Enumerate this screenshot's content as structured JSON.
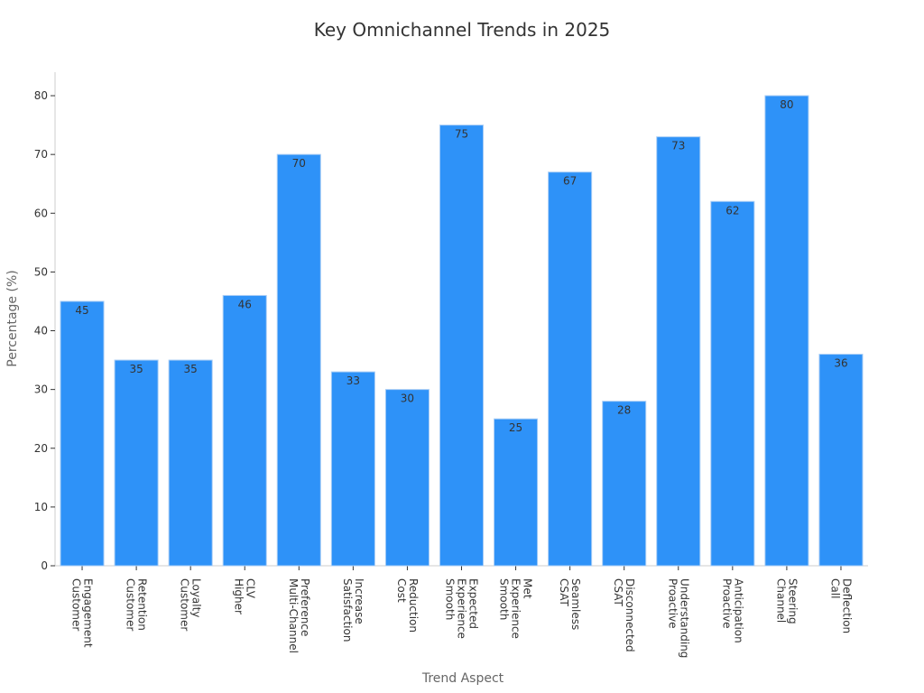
{
  "chart_data": {
    "type": "bar",
    "title": "Key Omnichannel Trends in 2025",
    "xlabel": "Trend Aspect",
    "ylabel": "Percentage (%)",
    "ylim": [
      0,
      84
    ],
    "yticks": [
      0,
      10,
      20,
      30,
      40,
      50,
      60,
      70,
      80
    ],
    "categories": [
      "Customer Engagement",
      "Customer Retention",
      "Customer Loyalty",
      "Higher CLV",
      "Multi-Channel Preference",
      "Satisfaction Increase",
      "Cost Reduction",
      "Smooth Experience Expected",
      "Smooth Experience Met",
      "CSAT Seamless",
      "CSAT Disconnected",
      "Proactive Understanding",
      "Proactive Anticipation",
      "Channel Steering",
      "Call Deflection"
    ],
    "category_lines": [
      [
        "Customer",
        "Engagement"
      ],
      [
        "Customer",
        "Retention"
      ],
      [
        "Customer",
        "Loyalty"
      ],
      [
        "Higher",
        "CLV"
      ],
      [
        "Multi-Channel",
        "Preference"
      ],
      [
        "Satisfaction",
        "Increase"
      ],
      [
        "Cost",
        "Reduction"
      ],
      [
        "Smooth",
        "Experience",
        "Expected"
      ],
      [
        "Smooth",
        "Experience",
        "Met"
      ],
      [
        "CSAT",
        "Seamless"
      ],
      [
        "CSAT",
        "Disconnected"
      ],
      [
        "Proactive",
        "Understanding"
      ],
      [
        "Proactive",
        "Anticipation"
      ],
      [
        "Channel",
        "Steering"
      ],
      [
        "Call",
        "Deflection"
      ]
    ],
    "values": [
      45,
      35,
      35,
      46,
      70,
      33,
      30,
      75,
      25,
      67,
      28,
      73,
      62,
      80,
      36
    ],
    "bar_color": "#2e92f8",
    "bar_edge_color": "#a9cdf5",
    "grid": false,
    "legend": "none"
  }
}
